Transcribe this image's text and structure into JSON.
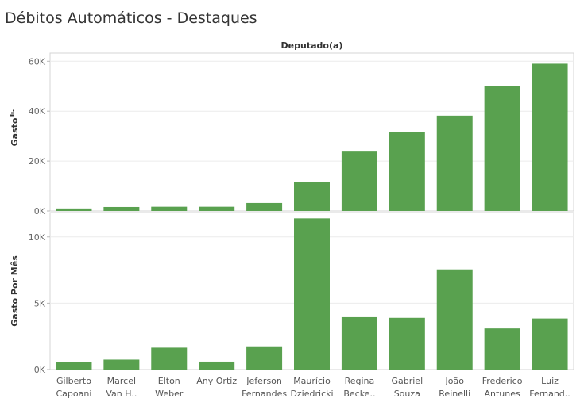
{
  "title": "Débitos Automáticos - Destaques",
  "chart_data": {
    "type": "bar",
    "column_header": "Deputado(a)",
    "categories": [
      [
        "Gilberto",
        "Capoani"
      ],
      [
        "Marcel",
        "Van H.."
      ],
      [
        "Elton",
        "Weber"
      ],
      [
        "Any Ortiz",
        ""
      ],
      [
        "Jeferson",
        "Fernandes"
      ],
      [
        "Maurício",
        "Dziedricki"
      ],
      [
        "Regina",
        "Becke.."
      ],
      [
        "Gabriel",
        "Souza"
      ],
      [
        "João",
        "Reinelli"
      ],
      [
        "Frederico",
        "Antunes"
      ],
      [
        "Luiz",
        "Fernand.."
      ]
    ],
    "color": "#59a14f",
    "panels": [
      {
        "ylabel": "Gasto",
        "ylim": [
          0,
          62000
        ],
        "ticks": [
          0,
          20000,
          40000,
          60000
        ],
        "tick_labels": [
          "0K",
          "20K",
          "40K",
          "60K"
        ],
        "values": [
          1000,
          1600,
          1700,
          1700,
          3200,
          11500,
          23800,
          31500,
          38200,
          50200,
          59000
        ]
      },
      {
        "ylabel": "Gasto Por Mês",
        "ylim": [
          0,
          11600
        ],
        "ticks": [
          0,
          5000,
          10000
        ],
        "tick_labels": [
          "0K",
          "5K",
          "10K"
        ],
        "values": [
          550,
          750,
          1650,
          600,
          1750,
          11400,
          3950,
          3900,
          7550,
          3100,
          3850
        ]
      }
    ]
  }
}
